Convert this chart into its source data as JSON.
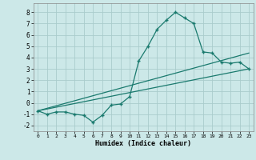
{
  "title": "",
  "xlabel": "Humidex (Indice chaleur)",
  "bg_color": "#cce8e8",
  "grid_color": "#aacccc",
  "line_color": "#1a7a6e",
  "xlim": [
    -0.5,
    23.5
  ],
  "ylim": [
    -2.5,
    8.8
  ],
  "yticks": [
    -2,
    -1,
    0,
    1,
    2,
    3,
    4,
    5,
    6,
    7,
    8
  ],
  "xticks": [
    0,
    1,
    2,
    3,
    4,
    5,
    6,
    7,
    8,
    9,
    10,
    11,
    12,
    13,
    14,
    15,
    16,
    17,
    18,
    19,
    20,
    21,
    22,
    23
  ],
  "curve1_x": [
    0,
    1,
    2,
    3,
    4,
    5,
    6,
    7,
    8,
    9,
    10,
    11,
    12,
    13,
    14,
    15,
    16,
    17,
    18,
    19,
    20,
    21,
    22,
    23
  ],
  "curve1_y": [
    -0.7,
    -1.0,
    -0.8,
    -0.8,
    -1.0,
    -1.1,
    -1.7,
    -1.1,
    -0.2,
    -0.1,
    0.55,
    3.7,
    5.0,
    6.5,
    7.3,
    8.0,
    7.5,
    7.0,
    4.5,
    4.4,
    3.6,
    3.5,
    3.6,
    3.0
  ],
  "line2_x": [
    0,
    23
  ],
  "line2_y": [
    -0.7,
    3.0
  ],
  "line3_x": [
    0,
    23
  ],
  "line3_y": [
    -0.7,
    4.4
  ]
}
